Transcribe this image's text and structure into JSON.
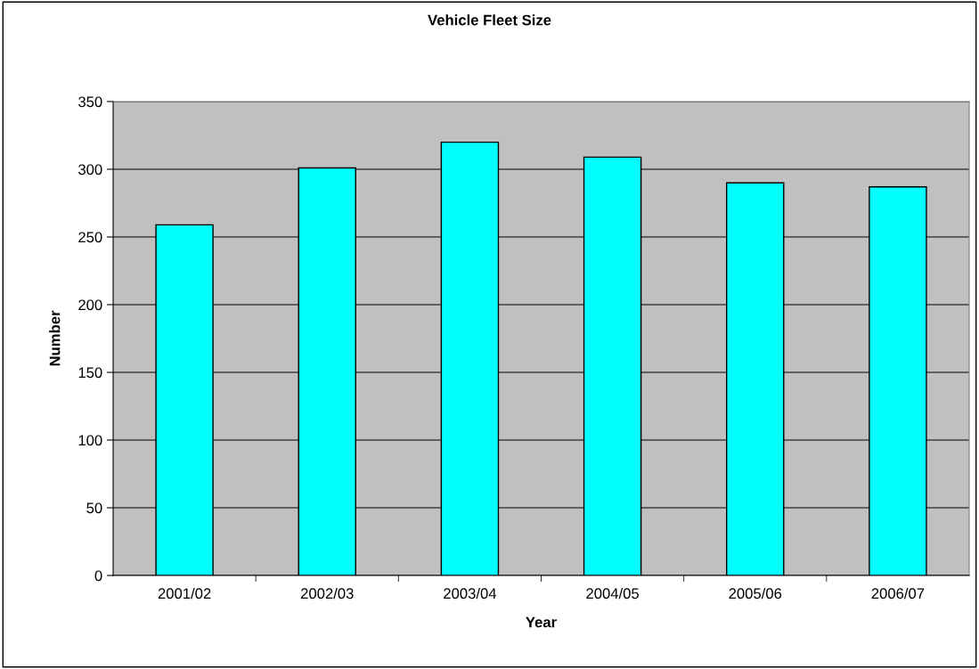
{
  "chart_data": {
    "type": "bar",
    "title": "Vehicle Fleet Size",
    "xlabel": "Year",
    "ylabel": "Number",
    "categories": [
      "2001/02",
      "2002/03",
      "2003/04",
      "2004/05",
      "2005/06",
      "2006/07"
    ],
    "values": [
      259,
      301,
      320,
      309,
      290,
      287
    ],
    "color": "#00ffff",
    "ylim": [
      0,
      350
    ],
    "yticks": [
      0,
      50,
      100,
      150,
      200,
      250,
      300,
      350
    ],
    "grid": "y"
  }
}
